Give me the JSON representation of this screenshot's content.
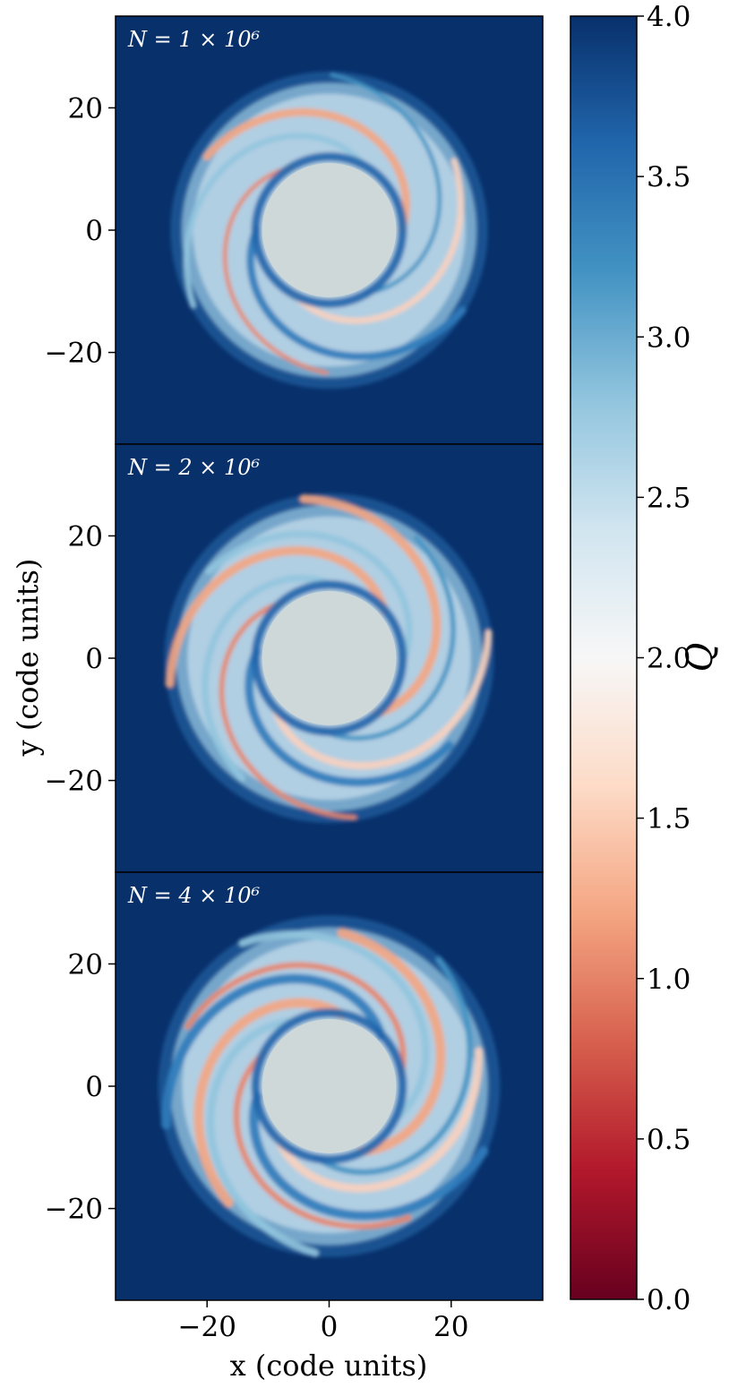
{
  "chart_data": {
    "type": "heatmap",
    "colormap": "RdBu",
    "xlabel": "x (code units)",
    "ylabel": "y (code units)",
    "xlim": [
      -35,
      35
    ],
    "ylim": [
      -35,
      35
    ],
    "x_ticks": [
      {
        "value": -20,
        "label": "−20"
      },
      {
        "value": 0,
        "label": "0"
      },
      {
        "value": 20,
        "label": "20"
      }
    ],
    "y_ticks": [
      {
        "value": 20,
        "label": "20"
      },
      {
        "value": 0,
        "label": "0"
      },
      {
        "value": -20,
        "label": "−20"
      }
    ],
    "inner_hole_radius": 11,
    "panels": [
      {
        "label": "N = 1 × 10⁶",
        "outer_radius": 26
      },
      {
        "label": "N = 2 × 10⁶",
        "outer_radius": 27
      },
      {
        "label": "N = 4 × 10⁶",
        "outer_radius": 28
      }
    ],
    "colorbar": {
      "label": "Q",
      "range": [
        0.0,
        4.0
      ],
      "ticks": [
        {
          "value": 4.0,
          "label": "4.0"
        },
        {
          "value": 3.5,
          "label": "3.5"
        },
        {
          "value": 3.0,
          "label": "3.0"
        },
        {
          "value": 2.5,
          "label": "2.5"
        },
        {
          "value": 2.0,
          "label": "2.0"
        },
        {
          "value": 1.5,
          "label": "1.5"
        },
        {
          "value": 1.0,
          "label": "1.0"
        },
        {
          "value": 0.5,
          "label": "0.5"
        },
        {
          "value": 0.0,
          "label": "0.0"
        }
      ]
    },
    "colors": {
      "background": "#08306b",
      "hole": "#cfd8d8",
      "stops": [
        "#67001f",
        "#b2182b",
        "#d6604d",
        "#f4a582",
        "#fddbc7",
        "#f7f7f7",
        "#d1e5f0",
        "#92c5de",
        "#4393c3",
        "#2166ac",
        "#08306b"
      ]
    }
  }
}
